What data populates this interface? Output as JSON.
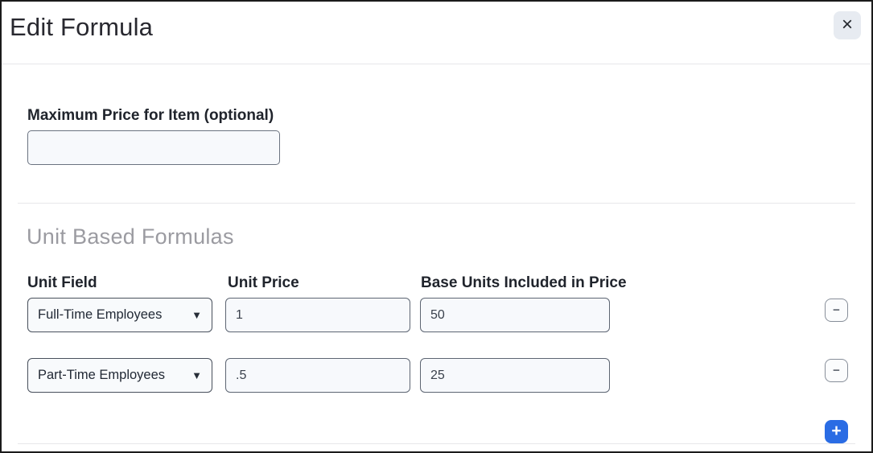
{
  "modal": {
    "title": "Edit Formula",
    "close_icon": "×"
  },
  "max_price": {
    "label": "Maximum Price for Item (optional)",
    "value": ""
  },
  "unit_formulas": {
    "section_title": "Unit Based Formulas",
    "columns": [
      "Unit Field",
      "Unit Price",
      "Base Units Included in Price"
    ],
    "rows": [
      {
        "unit_field": "Full-Time Employees",
        "unit_price": "1",
        "base_units": "50"
      },
      {
        "unit_field": "Part-Time Employees",
        "unit_price": ".5",
        "base_units": "25"
      }
    ],
    "caret_icon": "▼",
    "remove_icon": "−",
    "add_icon": "+"
  },
  "colors": {
    "accent_blue": "#2a6ce4",
    "close_button_bg": "#e7ebf1",
    "input_bg": "#f7f9fc",
    "input_border": "#5d6572",
    "section_title_gray": "#9b9ba1",
    "divider": "#e7e7ea",
    "window_border": "#1b1b1b"
  }
}
